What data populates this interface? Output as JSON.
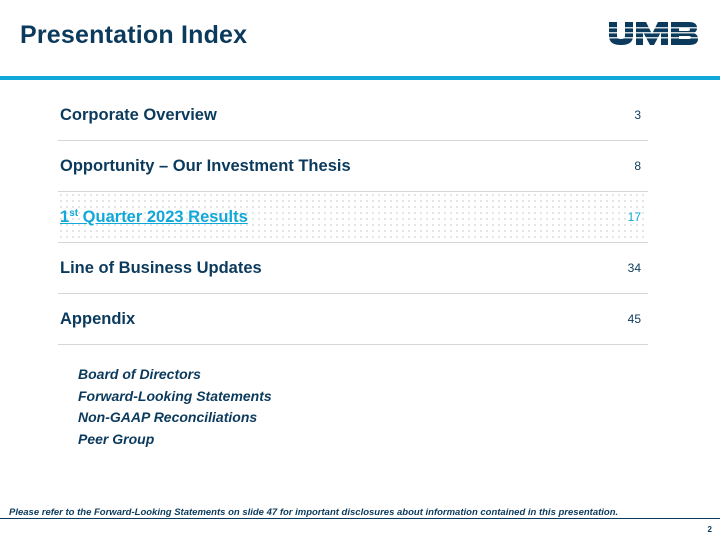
{
  "slide": {
    "title": "Presentation Index",
    "logo_text": "UMB",
    "page_number": "2"
  },
  "index": {
    "items": [
      {
        "label": "Corporate Overview",
        "page": "3",
        "active": false
      },
      {
        "label": "Opportunity – Our Investment Thesis",
        "page": "8",
        "active": false
      },
      {
        "label_ordinal": "1",
        "label_superscript": "st",
        "label_rest": " Quarter 2023 Results",
        "page": "17",
        "active": true
      },
      {
        "label": "Line of Business Updates",
        "page": "34",
        "active": false
      },
      {
        "label": "Appendix",
        "page": "45",
        "active": false
      }
    ],
    "appendix_items": [
      "Board of Directors",
      "Forward-Looking Statements",
      "Non-GAAP Reconciliations",
      "Peer Group"
    ]
  },
  "footer": {
    "note": "Please refer to the Forward-Looking Statements on slide 47 for important disclosures about information contained in this presentation."
  },
  "colors": {
    "navy": "#0b3a5c",
    "accent_blue": "#10a8d8",
    "row_divider": "#d6d6d6"
  }
}
